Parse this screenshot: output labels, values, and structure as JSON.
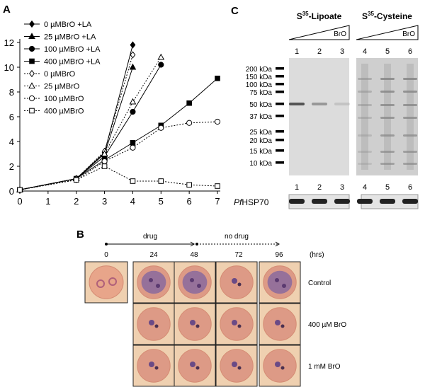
{
  "chart_data": {
    "type": "line",
    "panel_label": "A",
    "x": [
      0,
      2,
      3,
      4,
      5,
      6,
      7
    ],
    "xlim": [
      0,
      7
    ],
    "xticks": [
      0,
      1,
      2,
      3,
      4,
      5,
      6,
      7
    ],
    "ylim": [
      0,
      12
    ],
    "yticks": [
      0,
      2,
      4,
      6,
      8,
      10,
      12
    ],
    "legend": "upper left",
    "series": [
      {
        "name": "0 µMBrO +LA",
        "color": "#000000",
        "marker": "diamond",
        "filled": true,
        "dashed": false,
        "values": [
          0.1,
          1.0,
          3.1,
          11.8,
          null,
          null,
          null
        ]
      },
      {
        "name": "25 µMBrO +LA",
        "color": "#000000",
        "marker": "triangle",
        "filled": true,
        "dashed": false,
        "values": [
          0.1,
          1.0,
          3.0,
          10.0,
          null,
          null,
          null
        ]
      },
      {
        "name": "100 µMBrO +LA",
        "color": "#000000",
        "marker": "circle",
        "filled": true,
        "dashed": false,
        "values": [
          0.1,
          1.0,
          2.8,
          6.4,
          10.2,
          null,
          null
        ]
      },
      {
        "name": "400 µMBrO +LA",
        "color": "#000000",
        "marker": "square",
        "filled": true,
        "dashed": false,
        "values": [
          0.1,
          1.0,
          2.5,
          3.9,
          5.3,
          7.1,
          9.1
        ]
      },
      {
        "name": "0 µMBrO",
        "color": "#000000",
        "marker": "diamond",
        "filled": false,
        "dashed": true,
        "values": [
          0.1,
          1.0,
          3.2,
          11.0,
          null,
          null,
          null
        ]
      },
      {
        "name": "25 µMBrO",
        "color": "#000000",
        "marker": "triangle",
        "filled": false,
        "dashed": true,
        "values": [
          0.1,
          1.0,
          3.0,
          7.2,
          10.8,
          null,
          null
        ]
      },
      {
        "name": "100 µMBrO",
        "color": "#000000",
        "marker": "circle",
        "filled": false,
        "dashed": true,
        "values": [
          0.1,
          0.9,
          2.4,
          3.5,
          5.1,
          5.5,
          5.6
        ]
      },
      {
        "name": "400 µMBrO",
        "color": "#000000",
        "marker": "square",
        "filled": false,
        "dashed": true,
        "values": [
          0.1,
          0.9,
          2.0,
          0.8,
          0.8,
          0.5,
          0.4
        ]
      }
    ]
  },
  "panel_b": {
    "label": "B",
    "phases": [
      "drug",
      "no drug"
    ],
    "times": [
      0,
      24,
      48,
      72,
      96
    ],
    "time_unit": "(hrs)",
    "rows": [
      "Control",
      "400 µM BrO",
      "1 mM BrO"
    ]
  },
  "panel_c": {
    "label": "C",
    "gels": [
      {
        "title": [
          "S",
          "35",
          "-Lipoate"
        ],
        "treatment": "BrO",
        "lanes": [
          1,
          2,
          3
        ]
      },
      {
        "title": [
          "S",
          "35",
          "-Cysteine"
        ],
        "treatment": "BrO",
        "lanes": [
          4,
          5,
          6
        ]
      }
    ],
    "markers": [
      "200 kDa",
      "150 kDa",
      "100 kDa",
      "75 kDa",
      "50 kDa",
      "37 kDa",
      "25 kDa",
      "20 kDa",
      "15 kDa",
      "10 kDa"
    ],
    "loading_control": [
      "Pf",
      "HSP70"
    ]
  }
}
